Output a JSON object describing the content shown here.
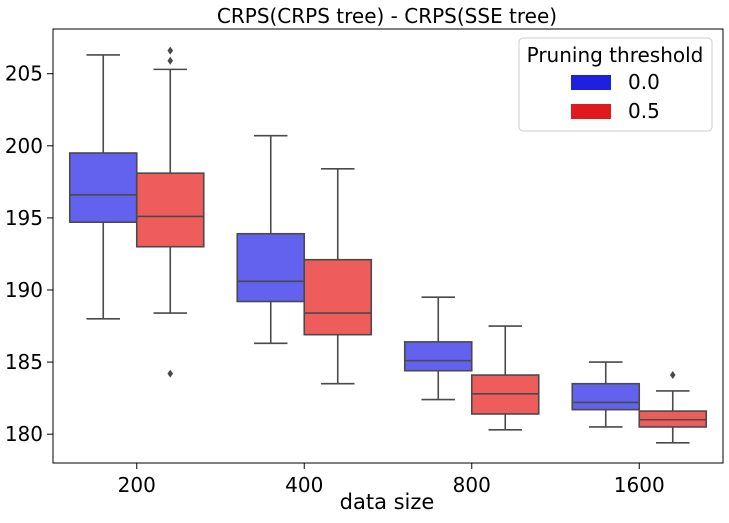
{
  "chart_data": {
    "type": "box",
    "title": "CRPS(CRPS tree) - CRPS(SSE tree)",
    "xlabel": "data size",
    "ylabel": "",
    "categories": [
      "200",
      "400",
      "800",
      "1600"
    ],
    "yticks": [
      180,
      185,
      190,
      195,
      200,
      205
    ],
    "ylim": [
      178.0,
      208.1
    ],
    "grid": false,
    "legend": {
      "title": "Pruning threshold",
      "placement": "top-right"
    },
    "series": [
      {
        "name": "0.0",
        "color": "#6262ee",
        "legend_color": "#1f1fdf",
        "boxes": [
          {
            "whisker_low": 188.0,
            "q1": 194.7,
            "median": 196.6,
            "q3": 199.5,
            "whisker_high": 206.3,
            "outliers": []
          },
          {
            "whisker_low": 186.3,
            "q1": 189.2,
            "median": 190.6,
            "q3": 193.9,
            "whisker_high": 200.7,
            "outliers": []
          },
          {
            "whisker_low": 182.4,
            "q1": 184.4,
            "median": 185.1,
            "q3": 186.4,
            "whisker_high": 189.5,
            "outliers": []
          },
          {
            "whisker_low": 180.5,
            "q1": 181.7,
            "median": 182.2,
            "q3": 183.5,
            "whisker_high": 185.0,
            "outliers": []
          }
        ]
      },
      {
        "name": "0.5",
        "color": "#ee5c5c",
        "legend_color": "#e0191b",
        "boxes": [
          {
            "whisker_low": 188.4,
            "q1": 193.0,
            "median": 195.1,
            "q3": 198.1,
            "whisker_high": 205.3,
            "outliers": [
              184.2,
              205.9,
              206.6
            ]
          },
          {
            "whisker_low": 183.5,
            "q1": 186.9,
            "median": 188.4,
            "q3": 192.1,
            "whisker_high": 198.4,
            "outliers": []
          },
          {
            "whisker_low": 180.3,
            "q1": 181.4,
            "median": 182.8,
            "q3": 184.1,
            "whisker_high": 187.5,
            "outliers": []
          },
          {
            "whisker_low": 179.4,
            "q1": 180.5,
            "median": 181.0,
            "q3": 181.6,
            "whisker_high": 183.0,
            "outliers": [
              184.1
            ]
          }
        ]
      }
    ]
  }
}
